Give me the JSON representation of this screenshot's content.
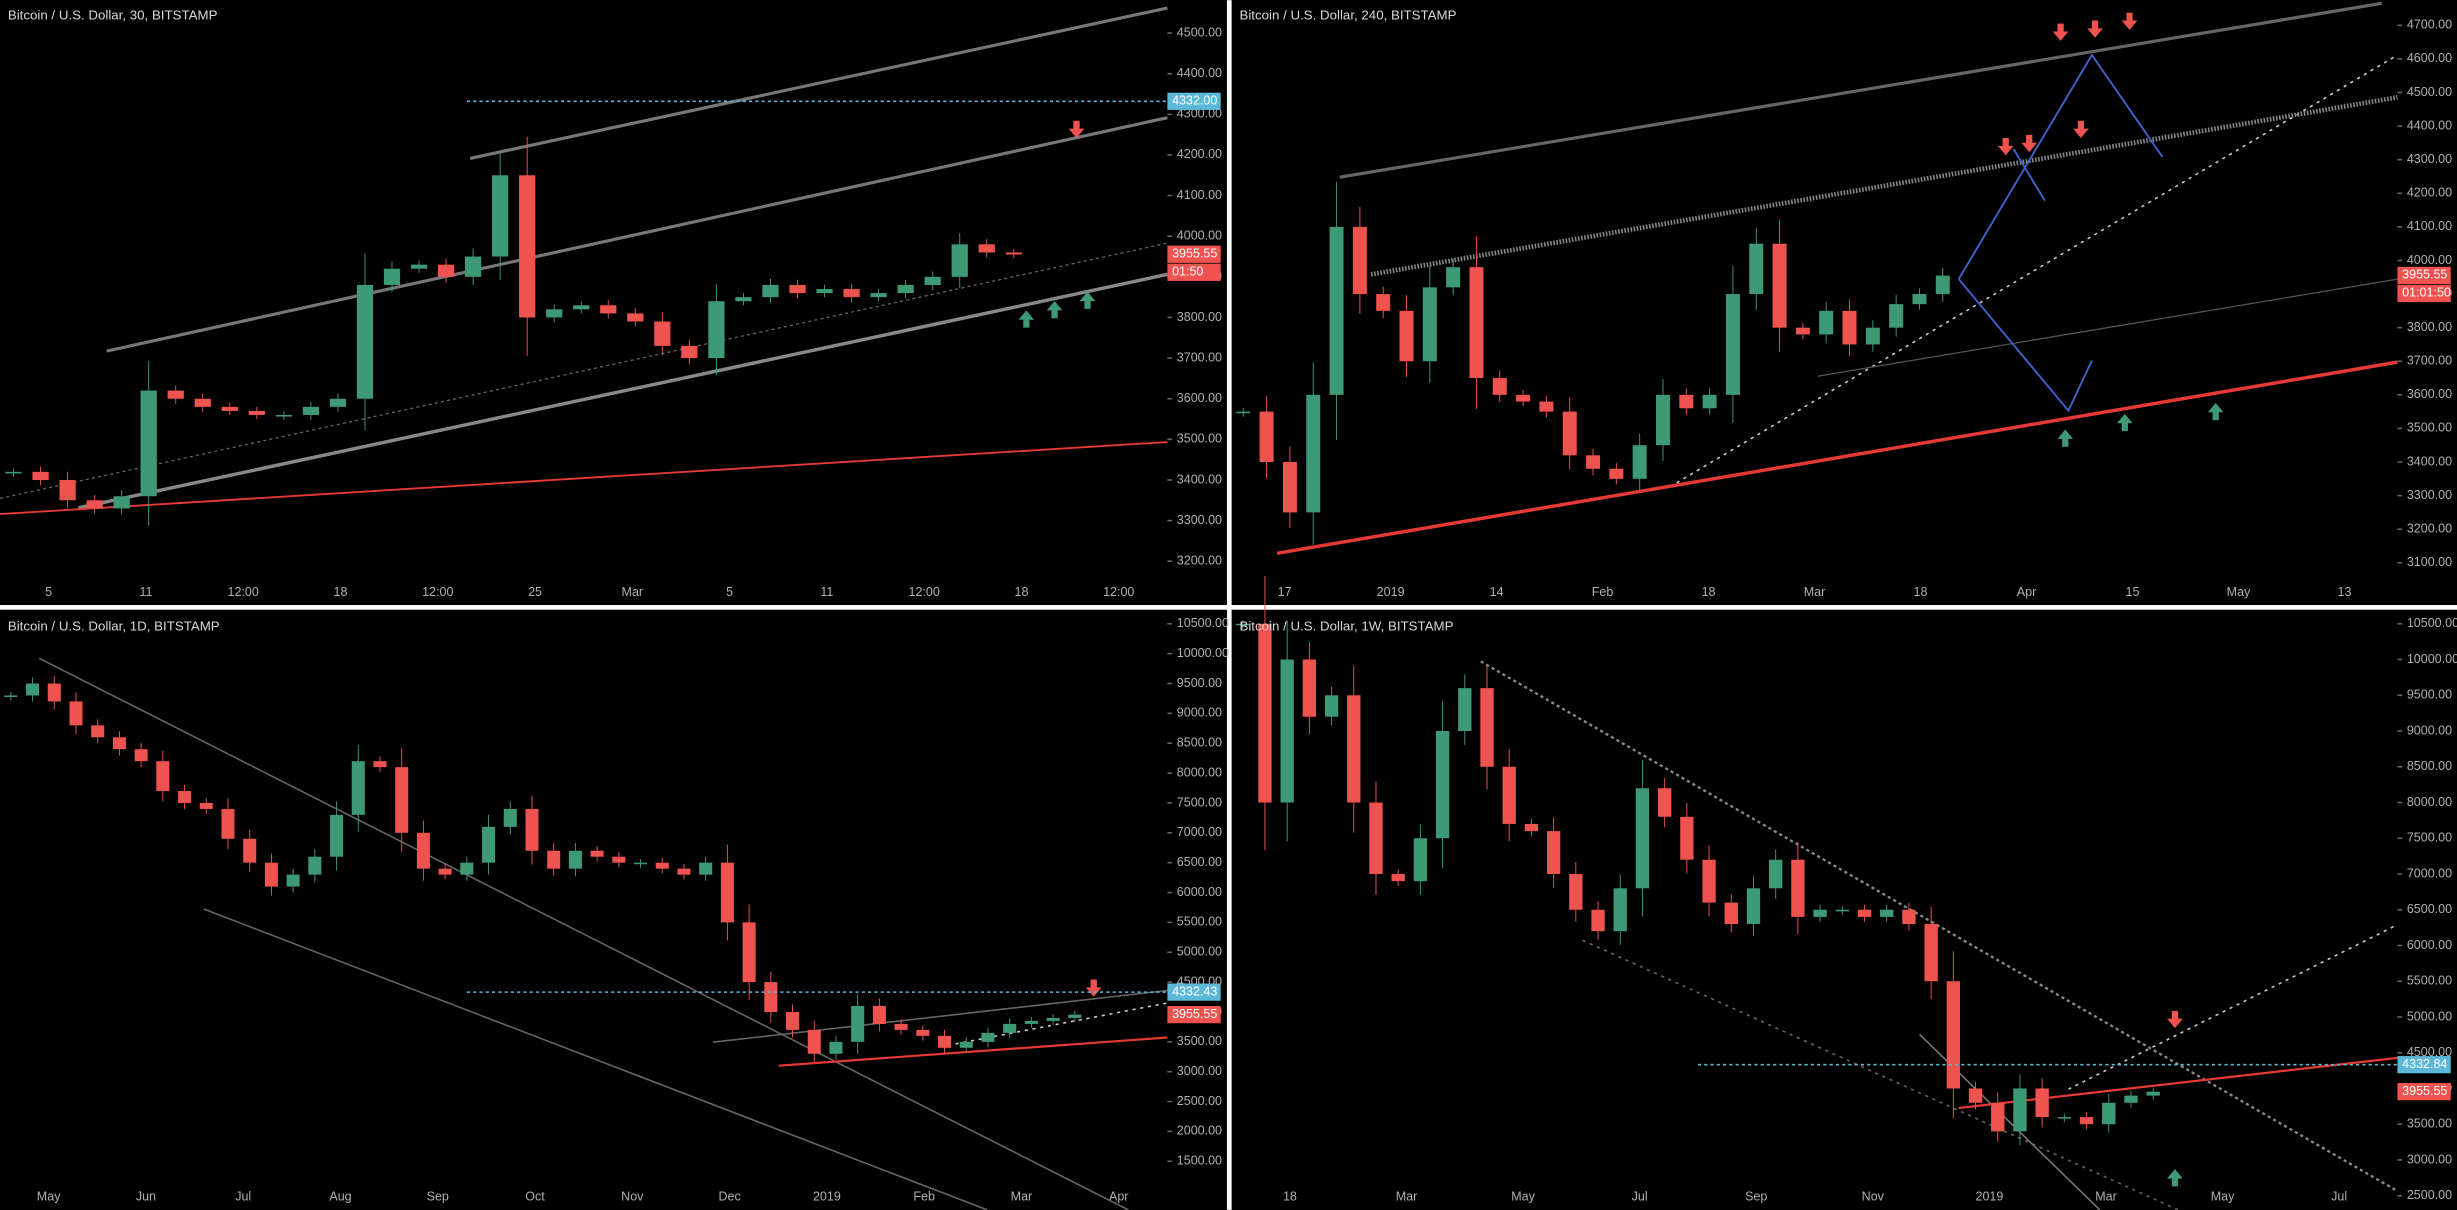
{
  "chart_data": [
    {
      "type": "candlestick",
      "title": "Bitcoin / U.S. Dollar, 30, BITSTAMP",
      "x_labels": [
        "5",
        "11",
        "12:00",
        "18",
        "12:00",
        "25",
        "Mar",
        "5",
        "11",
        "12:00",
        "18",
        "12:00"
      ],
      "ylim": [
        3154,
        4581
      ],
      "yticks": [
        {
          "value": 3200,
          "label": "3200.00"
        },
        {
          "value": 3300,
          "label": "3300.00"
        },
        {
          "value": 3400,
          "label": "3400.00"
        },
        {
          "value": 3500,
          "label": "3500.00"
        },
        {
          "value": 3600,
          "label": "3600.00"
        },
        {
          "value": 3700,
          "label": "3700.00"
        },
        {
          "value": 3800,
          "label": "3800.00"
        },
        {
          "value": 3900,
          "label": "3900.00"
        },
        {
          "value": 4000,
          "label": "4000.00"
        },
        {
          "value": 4100,
          "label": "4100.00"
        },
        {
          "value": 4200,
          "label": "4200.00"
        },
        {
          "value": 4300,
          "label": "4300.00"
        },
        {
          "value": 4400,
          "label": "4400.00"
        },
        {
          "value": 4500,
          "label": "4500.00"
        }
      ],
      "up_color": "#3e9a75",
      "down_color": "#ef5350",
      "values": [
        3420,
        3400,
        3350,
        3330,
        3360,
        3620,
        3600,
        3580,
        3570,
        3560,
        3560,
        3580,
        3600,
        3880,
        3920,
        3930,
        3900,
        3950,
        4150,
        3800,
        3820,
        3830,
        3810,
        3790,
        3730,
        3700,
        3840,
        3850,
        3880,
        3860,
        3870,
        3850,
        3860,
        3880,
        3900,
        3980,
        3960,
        3955
      ],
      "price_tags": [
        {
          "value": 4332,
          "label": "4332.00",
          "color": "#5bb8d6"
        },
        {
          "value": 3955.55,
          "label": "3955.55",
          "color": "#ef5350"
        }
      ],
      "countdown": "01:50"
    },
    {
      "type": "candlestick",
      "title": "Bitcoin / U.S. Dollar, 240, BITSTAMP",
      "x_labels": [
        "17",
        "2019",
        "14",
        "Feb",
        "18",
        "Mar",
        "18",
        "Apr",
        "15",
        "May",
        "13"
      ],
      "ylim": [
        3049,
        4775
      ],
      "yticks": [
        {
          "value": 3100,
          "label": "3100.00"
        },
        {
          "value": 3200,
          "label": "3200.00"
        },
        {
          "value": 3300,
          "label": "3300.00"
        },
        {
          "value": 3400,
          "label": "3400.00"
        },
        {
          "value": 3500,
          "label": "3500.00"
        },
        {
          "value": 3600,
          "label": "3600.00"
        },
        {
          "value": 3700,
          "label": "3700.00"
        },
        {
          "value": 3800,
          "label": "3800.00"
        },
        {
          "value": 3900,
          "label": "3900.00"
        },
        {
          "value": 4000,
          "label": "4000.00"
        },
        {
          "value": 4100,
          "label": "4100.00"
        },
        {
          "value": 4200,
          "label": "4200.00"
        },
        {
          "value": 4300,
          "label": "4300.00"
        },
        {
          "value": 4400,
          "label": "4400.00"
        },
        {
          "value": 4500,
          "label": "4500.00"
        },
        {
          "value": 4600,
          "label": "4600.00"
        },
        {
          "value": 4700,
          "label": "4700.00"
        }
      ],
      "up_color": "#3e9a75",
      "down_color": "#ef5350",
      "values": [
        3550,
        3400,
        3250,
        3600,
        4100,
        3900,
        3850,
        3700,
        3920,
        3980,
        3650,
        3600,
        3580,
        3550,
        3420,
        3380,
        3350,
        3450,
        3600,
        3560,
        3600,
        3900,
        4050,
        3800,
        3780,
        3850,
        3750,
        3800,
        3870,
        3900,
        3955
      ],
      "price_tags": [
        {
          "value": 3955.55,
          "label": "3955.55",
          "color": "#ef5350"
        }
      ],
      "countdown": "01:01:50"
    },
    {
      "type": "candlestick",
      "title": "Bitcoin / U.S. Dollar, 1D, BITSTAMP",
      "x_labels": [
        "May",
        "Jun",
        "Jul",
        "Aug",
        "Sep",
        "Oct",
        "Nov",
        "Dec",
        "2019",
        "Feb",
        "Mar",
        "Apr"
      ],
      "ylim": [
        1080,
        10710
      ],
      "yticks": [
        {
          "value": 1500,
          "label": "1500.00"
        },
        {
          "value": 2000,
          "label": "2000.00"
        },
        {
          "value": 2500,
          "label": "2500.00"
        },
        {
          "value": 3000,
          "label": "3000.00"
        },
        {
          "value": 3500,
          "label": "3500.00"
        },
        {
          "value": 4000,
          "label": "4000.00"
        },
        {
          "value": 4500,
          "label": "4500.00"
        },
        {
          "value": 5000,
          "label": "5000.00"
        },
        {
          "value": 5500,
          "label": "5500.00"
        },
        {
          "value": 6000,
          "label": "6000.00"
        },
        {
          "value": 6500,
          "label": "6500.00"
        },
        {
          "value": 7000,
          "label": "7000.00"
        },
        {
          "value": 7500,
          "label": "7500.00"
        },
        {
          "value": 8000,
          "label": "8000.00"
        },
        {
          "value": 8500,
          "label": "8500.00"
        },
        {
          "value": 9000,
          "label": "9000.00"
        },
        {
          "value": 9500,
          "label": "9500.00"
        },
        {
          "value": 10000,
          "label": "10000.00"
        },
        {
          "value": 10500,
          "label": "10500.00"
        }
      ],
      "up_color": "#3e9a75",
      "down_color": "#ef5350",
      "values": [
        9300,
        9500,
        9200,
        8800,
        8600,
        8400,
        8200,
        7700,
        7500,
        7400,
        6900,
        6500,
        6100,
        6300,
        6600,
        7300,
        8200,
        8100,
        7000,
        6400,
        6300,
        6500,
        7100,
        7400,
        6700,
        6400,
        6700,
        6600,
        6500,
        6500,
        6400,
        6300,
        6500,
        5500,
        4500,
        4000,
        3700,
        3300,
        3500,
        4100,
        3800,
        3700,
        3600,
        3400,
        3500,
        3650,
        3800,
        3850,
        3900,
        3955
      ],
      "price_tags": [
        {
          "value": 4332.43,
          "label": "4332.43",
          "color": "#5bb8d6"
        },
        {
          "value": 3955.55,
          "label": "3955.55",
          "color": "#ef5350"
        }
      ]
    },
    {
      "type": "candlestick",
      "title": "Bitcoin / U.S. Dollar, 1W, BITSTAMP",
      "x_labels": [
        "18",
        "Mar",
        "May",
        "Jul",
        "Sep",
        "Nov",
        "2019",
        "Mar",
        "May",
        "Jul"
      ],
      "ylim": [
        2346,
        10675
      ],
      "yticks": [
        {
          "value": 2500,
          "label": "2500.00"
        },
        {
          "value": 3000,
          "label": "3000.00"
        },
        {
          "value": 3500,
          "label": "3500.00"
        },
        {
          "value": 4000,
          "label": "4000.00"
        },
        {
          "value": 4500,
          "label": "4500.00"
        },
        {
          "value": 5000,
          "label": "5000.00"
        },
        {
          "value": 5500,
          "label": "5500.00"
        },
        {
          "value": 6000,
          "label": "6000.00"
        },
        {
          "value": 6500,
          "label": "6500.00"
        },
        {
          "value": 7000,
          "label": "7000.00"
        },
        {
          "value": 7500,
          "label": "7500.00"
        },
        {
          "value": 8000,
          "label": "8000.00"
        },
        {
          "value": 8500,
          "label": "8500.00"
        },
        {
          "value": 9000,
          "label": "9000.00"
        },
        {
          "value": 9500,
          "label": "9500.00"
        },
        {
          "value": 10000,
          "label": "10000.00"
        },
        {
          "value": 10500,
          "label": "10500.00"
        }
      ],
      "up_color": "#3e9a75",
      "down_color": "#ef5350",
      "values": [
        10500,
        8000,
        10000,
        9200,
        9500,
        8000,
        7000,
        6900,
        7500,
        9000,
        9600,
        8500,
        7700,
        7600,
        7000,
        6500,
        6200,
        6800,
        8200,
        7800,
        7200,
        6600,
        6300,
        6800,
        7200,
        6400,
        6500,
        6500,
        6400,
        6500,
        6300,
        5500,
        4000,
        3800,
        3400,
        4000,
        3600,
        3600,
        3500,
        3800,
        3900,
        3955
      ],
      "price_tags": [
        {
          "value": 4332.84,
          "label": "4332.84",
          "color": "#5bb8d6"
        },
        {
          "value": 3955.55,
          "label": "3955.55",
          "color": "#ef5350"
        }
      ]
    }
  ]
}
